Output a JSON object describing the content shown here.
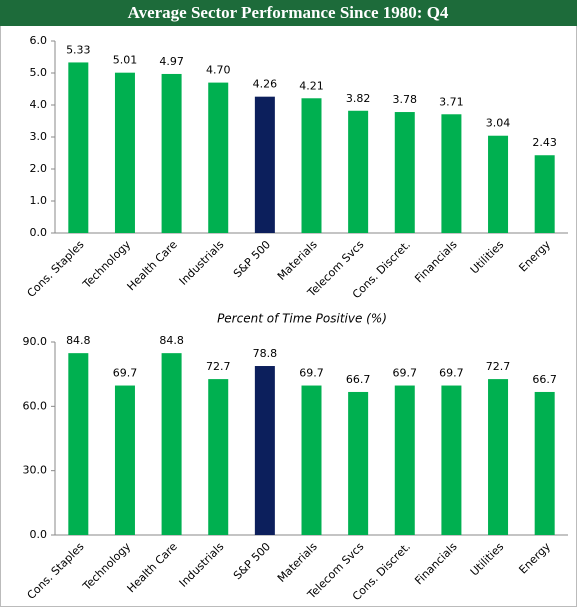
{
  "chart_data": [
    {
      "type": "bar",
      "title": "Average Sector Performance Since 1980: Q4",
      "categories": [
        "Cons. Staples",
        "Technology",
        "Health Care",
        "Industrials",
        "S&P 500",
        "Materials",
        "Telecom Svcs",
        "Cons. Discret.",
        "Financials",
        "Utilities",
        "Energy"
      ],
      "values": [
        5.33,
        5.01,
        4.97,
        4.7,
        4.26,
        4.21,
        3.82,
        3.78,
        3.71,
        3.04,
        2.43
      ],
      "value_labels": [
        "5.33",
        "5.01",
        "4.97",
        "4.70",
        "4.26",
        "4.21",
        "3.82",
        "3.78",
        "3.71",
        "3.04",
        "2.43"
      ],
      "colors": [
        "#00b050",
        "#00b050",
        "#00b050",
        "#00b050",
        "#0c1f5c",
        "#00b050",
        "#00b050",
        "#00b050",
        "#00b050",
        "#00b050",
        "#00b050"
      ],
      "ylim": [
        0,
        6
      ],
      "yticks": [
        {
          "value": 0,
          "label": "0.0"
        },
        {
          "value": 1,
          "label": "1.0"
        },
        {
          "value": 2,
          "label": "2.0"
        },
        {
          "value": 3,
          "label": "3.0"
        },
        {
          "value": 4,
          "label": "4.0"
        },
        {
          "value": 5,
          "label": "5.0"
        },
        {
          "value": 6,
          "label": "6.0"
        }
      ],
      "grid": false
    },
    {
      "type": "bar",
      "title": "Percent of Time Positive (%)",
      "categories": [
        "Cons. Staples",
        "Technology",
        "Health Care",
        "Industrials",
        "S&P 500",
        "Materials",
        "Telecom Svcs",
        "Cons. Discret.",
        "Financials",
        "Utilities",
        "Energy"
      ],
      "values": [
        84.8,
        69.7,
        84.8,
        72.7,
        78.8,
        69.7,
        66.7,
        69.7,
        69.7,
        72.7,
        66.7
      ],
      "colors": [
        "#00b050",
        "#00b050",
        "#00b050",
        "#00b050",
        "#0c1f5c",
        "#00b050",
        "#00b050",
        "#00b050",
        "#00b050",
        "#00b050",
        "#00b050"
      ],
      "ylim": [
        0,
        90
      ],
      "yticks": [
        {
          "value": 0,
          "label": "0.0"
        },
        {
          "value": 30,
          "label": "30.0"
        },
        {
          "value": 60,
          "label": "60.0"
        },
        {
          "value": 90,
          "label": "90.0"
        }
      ],
      "grid": false
    }
  ]
}
